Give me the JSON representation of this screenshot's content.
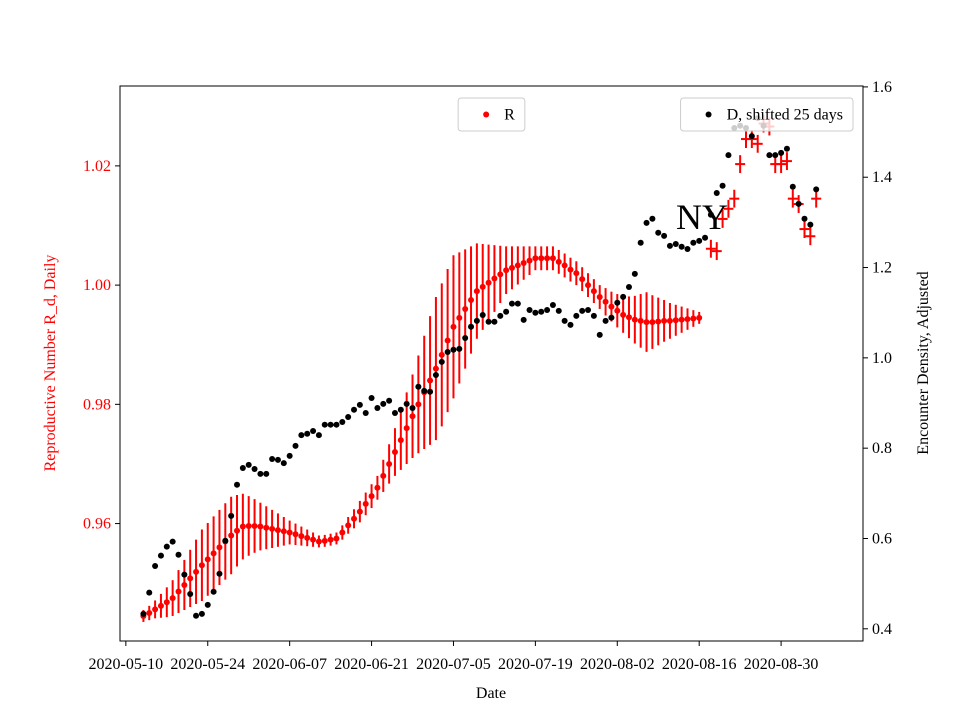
{
  "chart_data": {
    "type": "errorbar",
    "x_label": "Date",
    "y_label": "Reproductive Number R_d, Daily",
    "y2_label": "Encounter Density, Adjusted",
    "annotation": "NY",
    "xlim": [
      "2020-05-09",
      "2020-09-13"
    ],
    "xticks": [
      "2020-05-10",
      "2020-05-24",
      "2020-06-07",
      "2020-06-21",
      "2020-07-05",
      "2020-07-19",
      "2020-08-02",
      "2020-08-16",
      "2020-08-30"
    ],
    "ylim": [
      0.9403,
      1.0334
    ],
    "yticks": [
      0.96,
      0.98,
      {
        "value": 1,
        "label": "1.00"
      },
      1.02
    ],
    "y2lim": [
      0.373,
      1.602
    ],
    "y2ticks": [
      0.4,
      0.6,
      0.8,
      {
        "value": 1,
        "label": "1.0"
      },
      1.2,
      1.4,
      1.6
    ],
    "y_color": "#ff0000",
    "x": [
      "2020-05-13",
      "2020-05-14",
      "2020-05-15",
      "2020-05-16",
      "2020-05-17",
      "2020-05-18",
      "2020-05-19",
      "2020-05-20",
      "2020-05-21",
      "2020-05-22",
      "2020-05-23",
      "2020-05-24",
      "2020-05-25",
      "2020-05-26",
      "2020-05-27",
      "2020-05-28",
      "2020-05-29",
      "2020-05-30",
      "2020-05-31",
      "2020-06-01",
      "2020-06-02",
      "2020-06-03",
      "2020-06-04",
      "2020-06-05",
      "2020-06-06",
      "2020-06-07",
      "2020-06-08",
      "2020-06-09",
      "2020-06-10",
      "2020-06-11",
      "2020-06-12",
      "2020-06-13",
      "2020-06-14",
      "2020-06-15",
      "2020-06-16",
      "2020-06-17",
      "2020-06-18",
      "2020-06-19",
      "2020-06-20",
      "2020-06-21",
      "2020-06-22",
      "2020-06-23",
      "2020-06-24",
      "2020-06-25",
      "2020-06-26",
      "2020-06-27",
      "2020-06-28",
      "2020-06-29",
      "2020-06-30",
      "2020-07-01",
      "2020-07-02",
      "2020-07-03",
      "2020-07-04",
      "2020-07-05",
      "2020-07-06",
      "2020-07-07",
      "2020-07-08",
      "2020-07-09",
      "2020-07-10",
      "2020-07-11",
      "2020-07-12",
      "2020-07-13",
      "2020-07-14",
      "2020-07-15",
      "2020-07-16",
      "2020-07-17",
      "2020-07-18",
      "2020-07-19",
      "2020-07-20",
      "2020-07-21",
      "2020-07-22",
      "2020-07-23",
      "2020-07-24",
      "2020-07-25",
      "2020-07-26",
      "2020-07-27",
      "2020-07-28",
      "2020-07-29",
      "2020-07-30",
      "2020-07-31",
      "2020-08-01",
      "2020-08-02",
      "2020-08-03",
      "2020-08-04",
      "2020-08-05",
      "2020-08-06",
      "2020-08-07",
      "2020-08-08",
      "2020-08-09",
      "2020-08-10",
      "2020-08-11",
      "2020-08-12",
      "2020-08-13",
      "2020-08-14",
      "2020-08-15",
      "2020-08-16",
      "2020-08-17",
      "2020-08-18",
      "2020-08-19",
      "2020-08-20",
      "2020-08-21",
      "2020-08-22",
      "2020-08-23",
      "2020-08-24",
      "2020-08-25",
      "2020-08-26",
      "2020-08-27",
      "2020-08-28",
      "2020-08-29",
      "2020-08-30",
      "2020-08-31",
      "2020-09-01",
      "2020-09-02",
      "2020-09-03",
      "2020-09-04",
      "2020-09-05"
    ],
    "series": [
      {
        "name": "R",
        "color": "#ff0000",
        "marker": "o",
        "legend": "upper center",
        "values": [
          0.9445,
          0.945,
          0.9456,
          0.9462,
          0.9468,
          0.9475,
          0.9486,
          0.9497,
          0.9508,
          0.9519,
          0.953,
          0.954,
          0.955,
          0.956,
          0.957,
          0.958,
          0.9588,
          0.9595,
          0.9596,
          0.9596,
          0.9595,
          0.9593,
          0.9591,
          0.9589,
          0.9587,
          0.9585,
          0.9582,
          0.9579,
          0.9576,
          0.9573,
          0.957,
          0.9571,
          0.9573,
          0.9575,
          0.9585,
          0.9597,
          0.9608,
          0.962,
          0.9633,
          0.9646,
          0.966,
          0.968,
          0.97,
          0.972,
          0.974,
          0.976,
          0.978,
          0.98,
          0.982,
          0.984,
          0.986,
          0.9883,
          0.9907,
          0.993,
          0.9945,
          0.996,
          0.9975,
          0.999,
          0.9997,
          1.0004,
          1.0011,
          1.0018,
          1.0025,
          1.0029,
          1.0033,
          1.0037,
          1.0041,
          1.0045,
          1.0045,
          1.0045,
          1.0045,
          1.0039,
          1.0033,
          1.0026,
          1.002,
          1.001,
          1.0,
          0.999,
          0.998,
          0.9972,
          0.9964,
          0.9957,
          0.995,
          0.9946,
          0.9942,
          0.994,
          0.9938,
          0.9938,
          0.9939,
          0.994,
          0.994,
          0.9941,
          0.9942,
          0.9943,
          0.9944,
          0.9945,
          null,
          null,
          null,
          null,
          null,
          null,
          null,
          null,
          null,
          null,
          null,
          null,
          null,
          null,
          null,
          null,
          null,
          null,
          null,
          null
        ],
        "errors": [
          0.001,
          0.0012,
          0.0015,
          0.002,
          0.0025,
          0.003,
          0.0036,
          0.0042,
          0.0048,
          0.0054,
          0.006,
          0.0061,
          0.0062,
          0.0063,
          0.0064,
          0.0065,
          0.006,
          0.0055,
          0.005,
          0.0045,
          0.004,
          0.0036,
          0.0032,
          0.0028,
          0.0024,
          0.002,
          0.0018,
          0.0016,
          0.0014,
          0.0012,
          0.001,
          0.001,
          0.001,
          0.001,
          0.0012,
          0.0014,
          0.0016,
          0.0018,
          0.0019,
          0.002,
          0.002,
          0.0027,
          0.0033,
          0.004,
          0.005,
          0.006,
          0.007,
          0.0082,
          0.0095,
          0.0108,
          0.012,
          0.012,
          0.012,
          0.012,
          0.011,
          0.01,
          0.009,
          0.008,
          0.0072,
          0.0064,
          0.0056,
          0.0048,
          0.004,
          0.0036,
          0.0032,
          0.0028,
          0.0024,
          0.002,
          0.002,
          0.002,
          0.002,
          0.002,
          0.002,
          0.002,
          0.002,
          0.002,
          0.002,
          0.002,
          0.002,
          0.0023,
          0.0025,
          0.0028,
          0.003,
          0.0035,
          0.004,
          0.0045,
          0.005,
          0.0045,
          0.004,
          0.0035,
          0.003,
          0.0026,
          0.0022,
          0.0018,
          0.0014,
          0.001,
          null,
          null,
          null,
          null,
          null,
          null,
          null,
          null,
          null,
          null,
          null,
          null,
          null,
          null,
          null,
          null,
          null,
          null,
          null,
          null
        ]
      },
      {
        "color": "#ff0000",
        "marker": "+",
        "values": [
          null,
          null,
          null,
          null,
          null,
          null,
          null,
          null,
          null,
          null,
          null,
          null,
          null,
          null,
          null,
          null,
          null,
          null,
          null,
          null,
          null,
          null,
          null,
          null,
          null,
          null,
          null,
          null,
          null,
          null,
          null,
          null,
          null,
          null,
          null,
          null,
          null,
          null,
          null,
          null,
          null,
          null,
          null,
          null,
          null,
          null,
          null,
          null,
          null,
          null,
          null,
          null,
          null,
          null,
          null,
          null,
          null,
          null,
          null,
          null,
          null,
          null,
          null,
          null,
          null,
          null,
          null,
          null,
          null,
          null,
          null,
          null,
          null,
          null,
          null,
          null,
          null,
          null,
          null,
          null,
          null,
          null,
          null,
          null,
          null,
          null,
          null,
          null,
          null,
          null,
          null,
          null,
          null,
          null,
          null,
          null,
          null,
          1.0061,
          1.0057,
          1.0111,
          1.0128,
          1.0145,
          1.0203,
          1.0245,
          1.0245,
          1.0237,
          1.0271,
          1.0266,
          1.0203,
          1.0203,
          1.0208,
          1.0145,
          1.0136,
          1.0094,
          1.0082,
          1.0145
        ],
        "errors": [
          null,
          null,
          null,
          null,
          null,
          null,
          null,
          null,
          null,
          null,
          null,
          null,
          null,
          null,
          null,
          null,
          null,
          null,
          null,
          null,
          null,
          null,
          null,
          null,
          null,
          null,
          null,
          null,
          null,
          null,
          null,
          null,
          null,
          null,
          null,
          null,
          null,
          null,
          null,
          null,
          null,
          null,
          null,
          null,
          null,
          null,
          null,
          null,
          null,
          null,
          null,
          null,
          null,
          null,
          null,
          null,
          null,
          null,
          null,
          null,
          null,
          null,
          null,
          null,
          null,
          null,
          null,
          null,
          null,
          null,
          null,
          null,
          null,
          null,
          null,
          null,
          null,
          null,
          null,
          null,
          null,
          null,
          null,
          null,
          null,
          null,
          null,
          null,
          null,
          null,
          null,
          null,
          null,
          null,
          null,
          null,
          null,
          0.0015,
          0.0015,
          0.0015,
          0.0015,
          0.0015,
          0.0015,
          0.0015,
          0.0015,
          0.0015,
          0.0015,
          0.0015,
          0.0015,
          0.0015,
          0.0015,
          0.0015,
          0.0015,
          0.0015,
          0.0015,
          0.0015
        ]
      },
      {
        "name": "D, shifted 25 days",
        "color": "#000000",
        "marker": "o",
        "axis": "y2",
        "legend": "upper right",
        "values": [
          0.433,
          0.48,
          0.539,
          0.562,
          0.582,
          0.593,
          0.564,
          0.52,
          0.477,
          0.429,
          0.433,
          0.453,
          0.482,
          0.522,
          0.595,
          0.65,
          0.719,
          0.756,
          0.763,
          0.754,
          0.743,
          0.743,
          0.776,
          0.774,
          0.767,
          0.783,
          0.805,
          0.829,
          0.832,
          0.838,
          0.829,
          0.852,
          0.852,
          0.852,
          0.858,
          0.869,
          0.885,
          0.896,
          0.878,
          0.911,
          0.889,
          0.898,
          0.905,
          0.878,
          0.885,
          0.898,
          0.889,
          0.936,
          0.927,
          0.925,
          0.962,
          0.991,
          1.013,
          1.018,
          1.02,
          1.044,
          1.069,
          1.082,
          1.095,
          1.08,
          1.08,
          1.093,
          1.102,
          1.12,
          1.12,
          1.084,
          1.106,
          1.1,
          1.102,
          1.106,
          1.117,
          1.104,
          1.082,
          1.073,
          1.093,
          1.104,
          1.106,
          1.093,
          1.051,
          1.082,
          1.089,
          1.122,
          1.135,
          1.157,
          1.186,
          1.255,
          1.299,
          1.308,
          1.277,
          1.27,
          1.248,
          1.252,
          1.246,
          1.241,
          1.255,
          1.259,
          1.266,
          1.317,
          1.365,
          1.381,
          1.449,
          1.509,
          1.514,
          1.509,
          1.491,
          1.531,
          1.514,
          1.449,
          1.449,
          1.454,
          1.463,
          1.379,
          1.341,
          1.308,
          1.295,
          1.373
        ]
      }
    ]
  }
}
